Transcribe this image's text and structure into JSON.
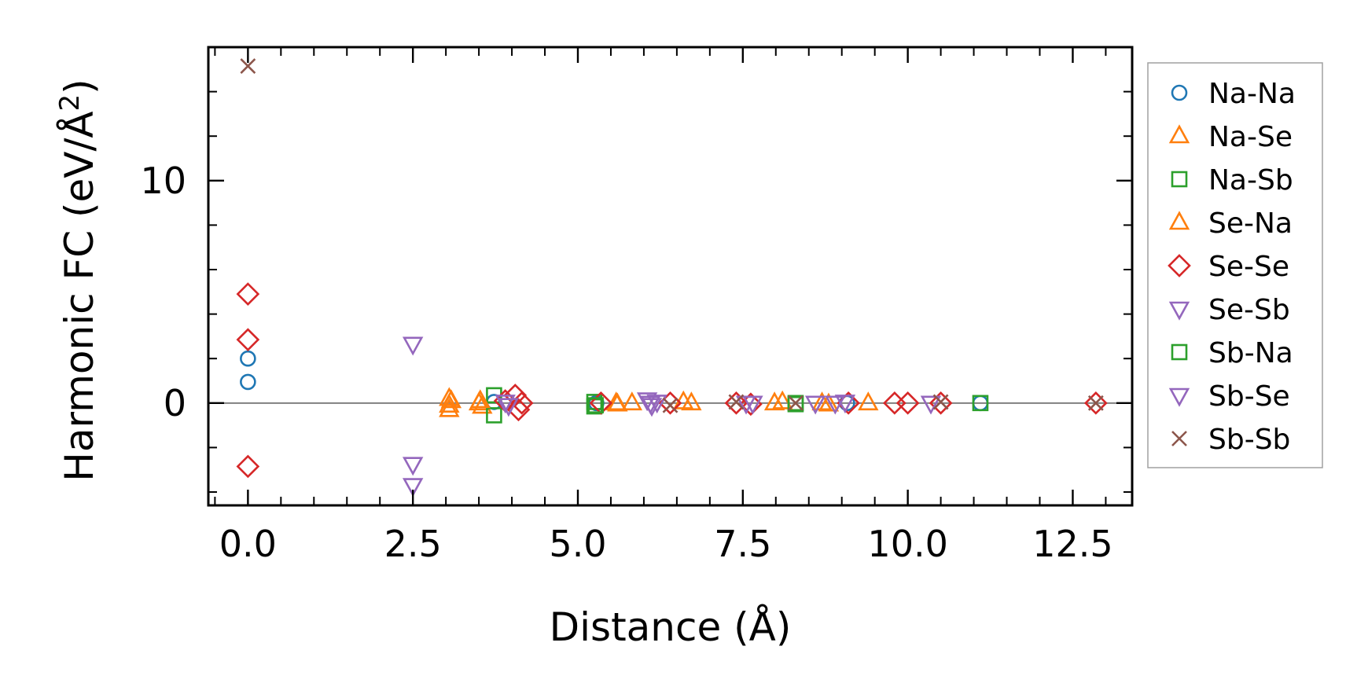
{
  "chart_data": {
    "type": "scatter",
    "title": "",
    "xlabel": "Distance (Å)",
    "ylabel_main": "Harmonic FC (eV/Å",
    "ylabel_sup": "2",
    "ylabel_close": ")",
    "xlim": [
      -0.6,
      13.4
    ],
    "ylim": [
      -4.6,
      16.0
    ],
    "xticks": [
      0.0,
      2.5,
      5.0,
      7.5,
      10.0,
      12.5
    ],
    "xtick_labels": [
      "0.0",
      "2.5",
      "5.0",
      "7.5",
      "10.0",
      "12.5"
    ],
    "yticks": [
      0,
      10
    ],
    "ytick_labels": [
      "0",
      "10"
    ],
    "zero_line": true,
    "grid": false,
    "legend_position": "right-outside",
    "series": [
      {
        "name": "Na-Na",
        "color": "#1f77b4",
        "marker": "circle",
        "points": [
          [
            0.0,
            2.0
          ],
          [
            0.0,
            0.95
          ],
          [
            3.73,
            0.05
          ],
          [
            5.28,
            0.0
          ],
          [
            9.08,
            0.0
          ],
          [
            11.1,
            0.0
          ]
        ]
      },
      {
        "name": "Na-Se",
        "color": "#ff7f0e",
        "marker": "triangle-up",
        "points": [
          [
            3.05,
            0.2
          ],
          [
            3.05,
            -0.1
          ],
          [
            3.05,
            -0.3
          ],
          [
            3.5,
            0.0
          ],
          [
            3.55,
            -0.15
          ],
          [
            5.58,
            0.0
          ],
          [
            5.82,
            0.0
          ],
          [
            6.72,
            0.0
          ],
          [
            7.98,
            0.0
          ],
          [
            8.7,
            0.0
          ],
          [
            9.4,
            0.0
          ]
        ]
      },
      {
        "name": "Na-Sb",
        "color": "#2ca02c",
        "marker": "square",
        "points": [
          [
            3.73,
            0.35
          ],
          [
            3.73,
            -0.55
          ],
          [
            5.25,
            0.05
          ],
          [
            5.25,
            -0.15
          ],
          [
            8.3,
            0.0
          ],
          [
            11.1,
            0.0
          ]
        ]
      },
      {
        "name": "Se-Na",
        "color": "#ff7f0e",
        "marker": "triangle-up",
        "points": [
          [
            3.08,
            0.1
          ],
          [
            3.52,
            0.1
          ],
          [
            5.6,
            -0.05
          ],
          [
            6.6,
            0.05
          ],
          [
            8.1,
            0.05
          ],
          [
            8.8,
            -0.05
          ]
        ]
      },
      {
        "name": "Se-Se",
        "color": "#d62728",
        "marker": "diamond",
        "points": [
          [
            0.0,
            4.9
          ],
          [
            0.0,
            2.85
          ],
          [
            0.0,
            -2.85
          ],
          [
            3.9,
            0.1
          ],
          [
            4.05,
            0.35
          ],
          [
            4.1,
            -0.3
          ],
          [
            4.15,
            0.0
          ],
          [
            5.35,
            0.0
          ],
          [
            6.4,
            0.0
          ],
          [
            7.4,
            0.0
          ],
          [
            7.62,
            -0.05
          ],
          [
            9.1,
            0.0
          ],
          [
            9.8,
            0.0
          ],
          [
            10.0,
            0.0
          ],
          [
            10.5,
            0.0
          ],
          [
            12.85,
            0.0
          ]
        ]
      },
      {
        "name": "Se-Sb",
        "color": "#9467bd",
        "marker": "triangle-down",
        "points": [
          [
            2.5,
            2.65
          ],
          [
            2.5,
            -2.75
          ],
          [
            2.5,
            -3.7
          ],
          [
            3.9,
            0.05
          ],
          [
            6.05,
            0.15
          ],
          [
            6.12,
            -0.1
          ],
          [
            6.2,
            0.05
          ],
          [
            7.55,
            0.0
          ],
          [
            8.6,
            0.0
          ],
          [
            8.9,
            0.0
          ],
          [
            10.35,
            0.0
          ]
        ]
      },
      {
        "name": "Sb-Na",
        "color": "#2ca02c",
        "marker": "square",
        "points": [
          [
            5.27,
            -0.1
          ],
          [
            8.3,
            -0.05
          ]
        ]
      },
      {
        "name": "Sb-Se",
        "color": "#9467bd",
        "marker": "triangle-down",
        "points": [
          [
            3.95,
            -0.1
          ],
          [
            6.1,
            0.0
          ],
          [
            7.65,
            0.0
          ],
          [
            9.05,
            0.05
          ]
        ]
      },
      {
        "name": "Sb-Sb",
        "color": "#8c564b",
        "marker": "x",
        "points": [
          [
            0.0,
            15.15
          ],
          [
            6.4,
            -0.1
          ],
          [
            7.4,
            0.05
          ],
          [
            8.3,
            0.0
          ],
          [
            10.5,
            0.05
          ],
          [
            12.85,
            0.0
          ]
        ]
      }
    ]
  }
}
